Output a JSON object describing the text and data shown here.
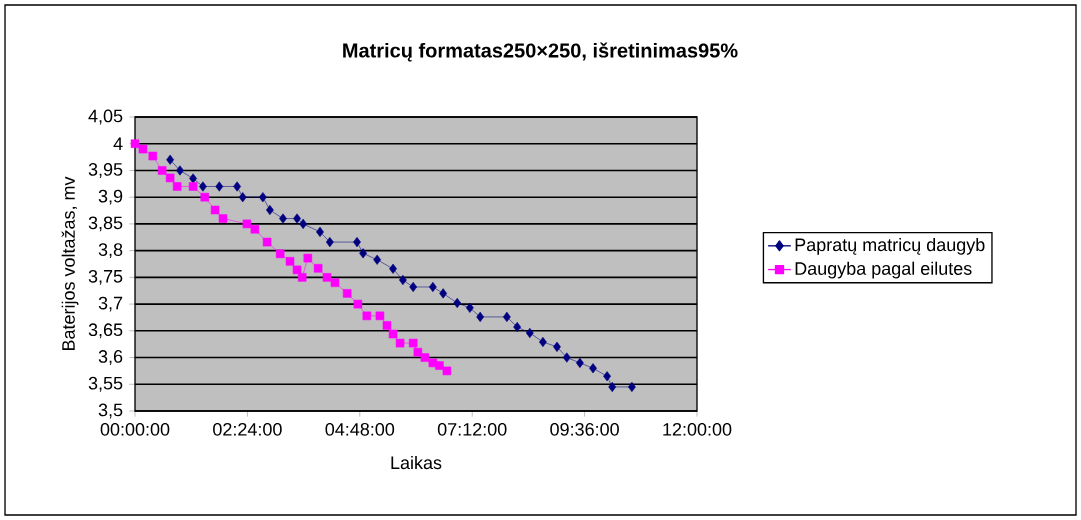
{
  "chart_data": {
    "type": "line",
    "title": "Matricų formatas250×250, išretinimas95%",
    "xlabel": "Laikas",
    "ylabel": "Baterijos voltažas, mv",
    "xlim": [
      0,
      12
    ],
    "xticks": [
      {
        "value": 0,
        "label": "00:00:00"
      },
      {
        "value": 2.4,
        "label": "02:24:00"
      },
      {
        "value": 4.8,
        "label": "04:48:00"
      },
      {
        "value": 7.2,
        "label": "07:12:00"
      },
      {
        "value": 9.6,
        "label": "09:36:00"
      },
      {
        "value": 12,
        "label": "12:00:00"
      }
    ],
    "ylim": [
      3.5,
      4.05
    ],
    "yticks": [
      {
        "value": 3.5,
        "label": "3,5"
      },
      {
        "value": 3.55,
        "label": "3,55"
      },
      {
        "value": 3.6,
        "label": "3,6"
      },
      {
        "value": 3.65,
        "label": "3,65"
      },
      {
        "value": 3.7,
        "label": "3,7"
      },
      {
        "value": 3.75,
        "label": "3,75"
      },
      {
        "value": 3.8,
        "label": "3,8"
      },
      {
        "value": 3.85,
        "label": "3,85"
      },
      {
        "value": 3.9,
        "label": "3,9"
      },
      {
        "value": 3.95,
        "label": "3,95"
      },
      {
        "value": 4,
        "label": "4"
      },
      {
        "value": 4.05,
        "label": "4,05"
      }
    ],
    "grid": "y",
    "legend": "right",
    "line_style": "solid",
    "series": [
      {
        "name": "Papratų matricų daugyb",
        "color": "#000080",
        "marker": "diamond",
        "x": [
          0.75,
          0.96,
          1.24,
          1.45,
          1.8,
          2.18,
          2.3,
          2.73,
          2.88,
          3.16,
          3.46,
          3.59,
          3.95,
          4.16,
          4.74,
          4.87,
          5.17,
          5.51,
          5.72,
          5.94,
          6.36,
          6.58,
          6.88,
          7.15,
          7.37,
          7.94,
          8.16,
          8.43,
          8.71,
          9.01,
          9.22,
          9.5,
          9.78,
          10.08,
          10.19,
          10.61
        ],
        "values": [
          3.97,
          3.95,
          3.935,
          3.92,
          3.92,
          3.92,
          3.9,
          3.9,
          3.876,
          3.86,
          3.86,
          3.85,
          3.835,
          3.816,
          3.816,
          3.795,
          3.783,
          3.766,
          3.745,
          3.732,
          3.732,
          3.72,
          3.702,
          3.693,
          3.676,
          3.676,
          3.657,
          3.646,
          3.629,
          3.62,
          3.6,
          3.59,
          3.58,
          3.565,
          3.545,
          3.545
        ]
      },
      {
        "name": "Daugyba pagal eilutes",
        "color": "#ff00ff",
        "marker": "square",
        "x": [
          0,
          0.17,
          0.38,
          0.58,
          0.75,
          0.9,
          1.24,
          1.49,
          1.71,
          1.88,
          2.39,
          2.56,
          2.82,
          3.1,
          3.31,
          3.46,
          3.57,
          3.69,
          3.91,
          4.1,
          4.27,
          4.53,
          4.76,
          4.95,
          5.23,
          5.38,
          5.51,
          5.66,
          5.94,
          6.04,
          6.19,
          6.36,
          6.5,
          6.66
        ],
        "values": [
          4.0,
          3.99,
          3.977,
          3.95,
          3.936,
          3.92,
          3.92,
          3.9,
          3.876,
          3.86,
          3.85,
          3.84,
          3.816,
          3.794,
          3.78,
          3.764,
          3.75,
          3.786,
          3.767,
          3.75,
          3.74,
          3.72,
          3.7,
          3.678,
          3.678,
          3.66,
          3.644,
          3.627,
          3.627,
          3.61,
          3.6,
          3.59,
          3.585,
          3.575
        ]
      }
    ]
  }
}
